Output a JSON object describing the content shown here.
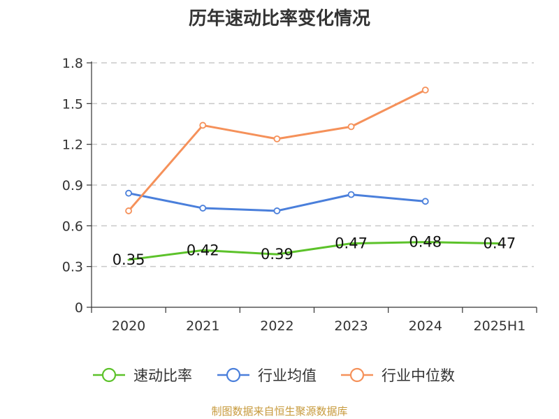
{
  "chart_data": {
    "type": "line",
    "title": "历年速动比率变化情况",
    "categories": [
      "2020",
      "2021",
      "2022",
      "2023",
      "2024",
      "2025H1"
    ],
    "ylim": [
      0,
      1.8
    ],
    "yticks": [
      "0",
      "0.3",
      "0.6",
      "0.9",
      "1.2",
      "1.5",
      "1.8"
    ],
    "grid": true,
    "legend_position": "bottom",
    "series": [
      {
        "name": "速动比率",
        "color": "#5cc22a",
        "values": [
          0.35,
          0.42,
          0.39,
          0.47,
          0.48,
          0.47
        ],
        "labels": [
          "0.35",
          "0.42",
          "0.39",
          "0.47",
          "0.48",
          "0.47"
        ],
        "markers": false
      },
      {
        "name": "行业均值",
        "color": "#4a7fdb",
        "values": [
          0.84,
          0.73,
          0.71,
          0.83,
          0.78,
          null
        ],
        "markers": true
      },
      {
        "name": "行业中位数",
        "color": "#f5915a",
        "values": [
          0.71,
          1.34,
          1.24,
          1.33,
          1.6,
          null
        ],
        "markers": true
      }
    ]
  },
  "source": "制图数据来自恒生聚源数据库"
}
